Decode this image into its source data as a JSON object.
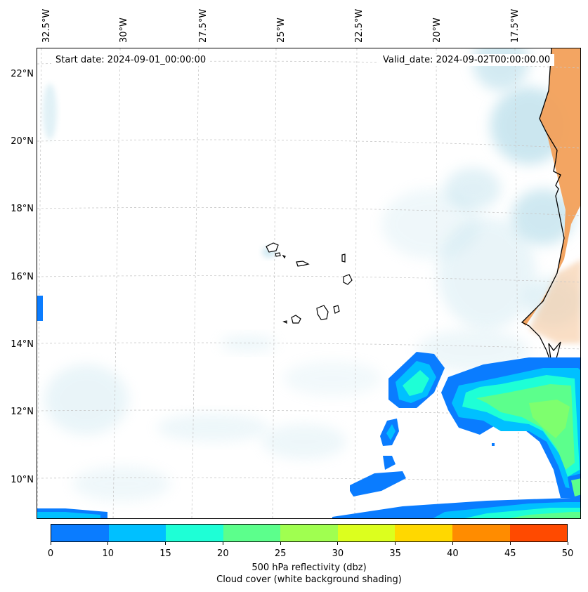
{
  "header": {
    "start_date": "Start date: 2024-09-01_00:00:00",
    "valid_date": "Valid_date: 2024-09-02T00:00:00.00"
  },
  "axes": {
    "lon_labels": [
      "32.5°W",
      "30°W",
      "27.5°W",
      "25°W",
      "22.5°W",
      "20°W",
      "17.5°W"
    ],
    "lat_labels": [
      "22°N",
      "20°N",
      "18°N",
      "16°N",
      "14°N",
      "12°N",
      "10°N"
    ]
  },
  "colorbar": {
    "ticks": [
      "0",
      "10",
      "15",
      "20",
      "25",
      "30",
      "35",
      "40",
      "45",
      "50"
    ],
    "colors": [
      "#0a7cff",
      "#00c0ff",
      "#1effd6",
      "#5cff8c",
      "#a0ff50",
      "#dcff1e",
      "#ffd800",
      "#ff8c00",
      "#ff4a00"
    ],
    "title": "500 hPa reflectivity (dbz)",
    "subtitle": "Cloud cover (white background shading)"
  },
  "map_colors": {
    "cloud": "#a9d7e6",
    "land": "#f2a05a",
    "coast": "#000000",
    "grid": "#c8c8c8"
  }
}
